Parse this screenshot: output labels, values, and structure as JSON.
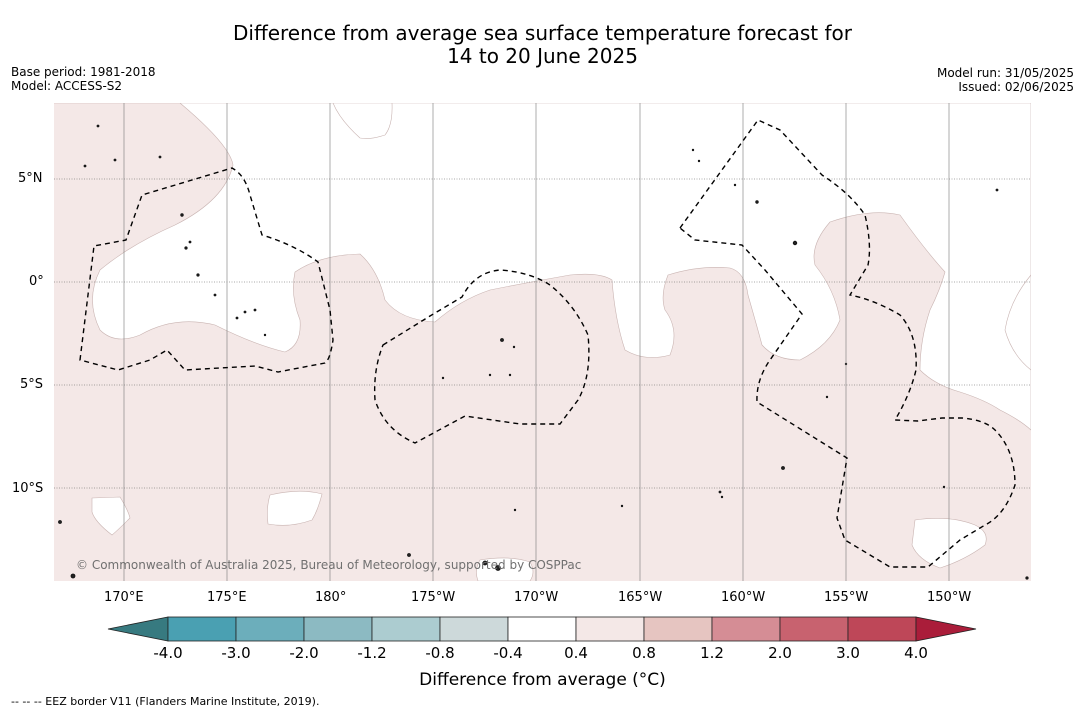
{
  "title": {
    "line1": "Difference from average sea surface temperature forecast for",
    "line2": "14 to 20 June 2025"
  },
  "meta_left": {
    "base_period": "Base period: 1981-2018",
    "model": "Model: ACCESS-S2"
  },
  "meta_right": {
    "model_run": "Model run: 31/05/2025",
    "issued": "Issued: 02/06/2025"
  },
  "map": {
    "lat_labels": [
      "5°N",
      "0°",
      "5°S",
      "10°S"
    ],
    "lon_labels": [
      "170°E",
      "175°E",
      "180°",
      "175°W",
      "170°W",
      "165°W",
      "160°W",
      "155°W",
      "150°W"
    ],
    "copyright": "© Commonwealth of Australia 2025, Bureau of Meteorology, supported by COSPPac",
    "anomaly_fill_color": "#f4e8e7",
    "eez_line_style": "dashed"
  },
  "colorbar": {
    "title": "Difference from average (°C)",
    "tick_labels": [
      "-4.0",
      "-3.0",
      "-2.0",
      "-1.2",
      "-0.8",
      "-0.4",
      "0.4",
      "0.8",
      "1.2",
      "2.0",
      "3.0",
      "4.0"
    ],
    "colors": [
      "#377a80",
      "#4aa0b2",
      "#6caebb",
      "#8cbac2",
      "#acccd0",
      "#cdd9da",
      "#ffffff",
      "#f4e8e7",
      "#e6c5c1",
      "#d58d95",
      "#c8626f",
      "#be4758",
      "#aa1d3a"
    ],
    "extend": "both"
  },
  "footnote": "--  --  -- EEZ border V11 (Flanders Marine Institute, 2019)."
}
